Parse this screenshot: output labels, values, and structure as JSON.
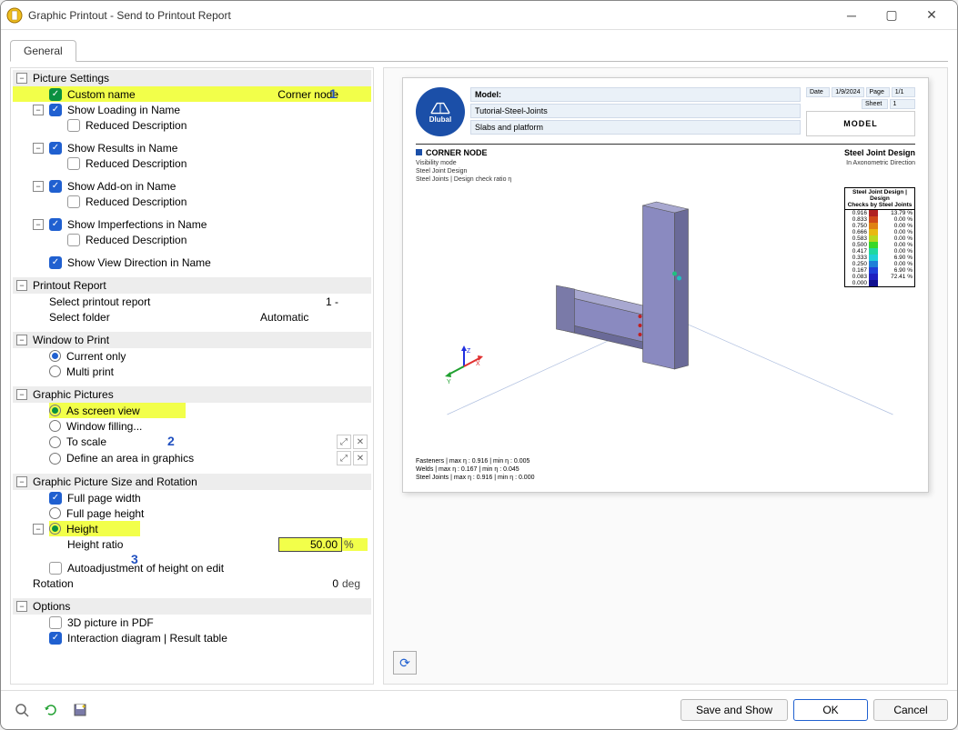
{
  "window": {
    "title": "Graphic Printout - Send to Printout Report"
  },
  "tabs": {
    "general": "General"
  },
  "annotations": {
    "a1": "1",
    "a2": "2",
    "a3": "3"
  },
  "sections": {
    "pictureSettings": {
      "header": "Picture Settings",
      "customName": {
        "label": "Custom name",
        "value": "Corner node"
      },
      "showLoading": {
        "label": "Show Loading in Name"
      },
      "reducedDesc": "Reduced Description",
      "showResults": {
        "label": "Show Results in Name"
      },
      "showAddon": {
        "label": "Show Add-on in Name"
      },
      "showImperfections": {
        "label": "Show Imperfections in Name"
      },
      "showViewDirection": {
        "label": "Show View Direction in Name"
      }
    },
    "printoutReport": {
      "header": "Printout Report",
      "selectReport": {
        "label": "Select printout report",
        "value": "1 -"
      },
      "selectFolder": {
        "label": "Select folder",
        "value": "Automatic"
      }
    },
    "windowToPrint": {
      "header": "Window to Print",
      "currentOnly": "Current only",
      "multiPrint": "Multi print"
    },
    "graphicPictures": {
      "header": "Graphic Pictures",
      "asScreenView": "As screen view",
      "windowFilling": "Window filling...",
      "toScale": "To scale",
      "defineArea": "Define an area in graphics"
    },
    "sizeRotation": {
      "header": "Graphic Picture Size and Rotation",
      "fullWidth": "Full page width",
      "fullHeight": "Full page height",
      "height": "Height",
      "heightRatio": {
        "label": "Height ratio",
        "value": "50.00",
        "unit": "%"
      },
      "autoadjust": "Autoadjustment of height on edit",
      "rotation": {
        "label": "Rotation",
        "value": "0",
        "unit": "deg"
      }
    },
    "options": {
      "header": "Options",
      "pdf3d": "3D picture in PDF",
      "interactionDiagram": "Interaction diagram | Result table"
    }
  },
  "preview": {
    "logoText": "Dlubal",
    "header": {
      "modelLabel": "Model:",
      "project": "Tutorial-Steel-Joints",
      "slabs": "Slabs and platform",
      "dateLabel": "Date",
      "date": "1/9/2024",
      "pageLabel": "Page",
      "page": "1/1",
      "sheetLabel": "Sheet",
      "sheet": "1",
      "modelBox": "MODEL"
    },
    "section": {
      "title": "CORNER NODE",
      "right": "Steel Joint Design",
      "sub1": "Visibility mode",
      "sub2": "Steel Joint Design",
      "sub3": "Steel Joints | Design check ratio η",
      "axText": "In Axonometric Direction"
    },
    "legend": {
      "title1": "Steel Joint Design | Design",
      "title2": "Checks by Steel Joints",
      "rows": [
        {
          "v": "0.916",
          "c": "#b02222",
          "p": "13.79 %"
        },
        {
          "v": "0.833",
          "c": "#d04a1a",
          "p": "0.00 %"
        },
        {
          "v": "0.750",
          "c": "#e08214",
          "p": "0.00 %"
        },
        {
          "v": "0.666",
          "c": "#e8b812",
          "p": "0.00 %"
        },
        {
          "v": "0.583",
          "c": "#b8d820",
          "p": "0.00 %"
        },
        {
          "v": "0.500",
          "c": "#38d828",
          "p": "0.00 %"
        },
        {
          "v": "0.417",
          "c": "#20d8a0",
          "p": "0.00 %"
        },
        {
          "v": "0.333",
          "c": "#20d0d8",
          "p": "6.90 %"
        },
        {
          "v": "0.250",
          "c": "#2080d8",
          "p": "0.00 %"
        },
        {
          "v": "0.167",
          "c": "#2040d8",
          "p": "6.90 %"
        },
        {
          "v": "0.083",
          "c": "#2020c0",
          "p": "72.41 %"
        },
        {
          "v": "0.000",
          "c": "#101090",
          "p": ""
        }
      ]
    },
    "footnotes": {
      "l1": "Fasteners | max η : 0.916 | min η : 0.005",
      "l2": "Welds | max η : 0.167 | min η : 0.045",
      "l3": "Steel Joints | max η : 0.916 | min η : 0.000"
    }
  },
  "buttons": {
    "saveShow": "Save and Show",
    "ok": "OK",
    "cancel": "Cancel"
  }
}
